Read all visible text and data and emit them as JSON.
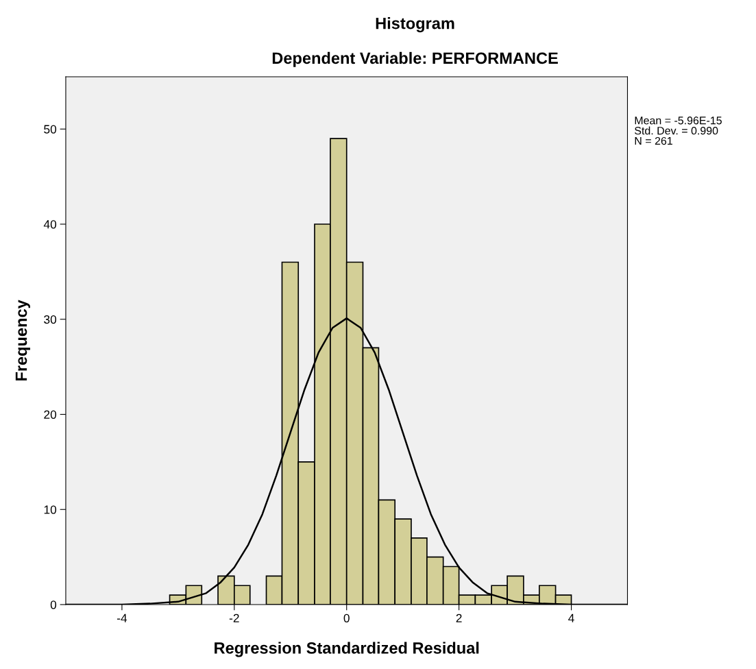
{
  "chart_data": {
    "type": "histogram",
    "title": "Histogram",
    "subtitle": "Dependent Variable: PERFORMANCE",
    "xlabel": "Regression Standardized Residual",
    "ylabel": "Frequency",
    "series": [
      {
        "color": "#d3cf97",
        "bins": [
          -3.15,
          -2.86,
          -2.58,
          -2.29,
          -2.0,
          -1.72,
          -1.43,
          -1.15,
          -0.86,
          -0.57,
          -0.29,
          0.0,
          0.29,
          0.57,
          0.86,
          1.15,
          1.43,
          1.72,
          2.0,
          2.29,
          2.58,
          2.86,
          3.15,
          3.43,
          3.72,
          4.0
        ],
        "values": [
          1,
          2,
          0,
          3,
          2,
          0,
          3,
          36,
          15,
          40,
          49,
          36,
          27,
          11,
          9,
          7,
          5,
          4,
          1,
          1,
          2,
          3,
          1,
          2,
          1
        ]
      },
      {
        "type": "line",
        "color": "#000000",
        "x": [
          -5,
          -4,
          -3.5,
          -3,
          -2.5,
          -2.25,
          -2,
          -1.75,
          -1.5,
          -1.25,
          -1,
          -0.75,
          -0.5,
          -0.25,
          0,
          0.25,
          0.5,
          0.75,
          1,
          1.25,
          1.5,
          1.75,
          2,
          2.25,
          2.5,
          3,
          3.5,
          4,
          5
        ],
        "values": [
          0,
          0,
          0.1,
          0.3,
          1.2,
          2.3,
          3.9,
          6.3,
          9.5,
          13.6,
          18.1,
          22.6,
          26.5,
          29.1,
          30.1,
          29.1,
          26.5,
          22.6,
          18.1,
          13.6,
          9.5,
          6.3,
          3.9,
          2.3,
          1.2,
          0.3,
          0.1,
          0,
          0
        ]
      }
    ],
    "xlim": [
      -5,
      5
    ],
    "xticks": [
      -4,
      -2,
      0,
      2,
      4
    ],
    "ylim": [
      0,
      55.5
    ],
    "yticks": [
      0,
      10,
      20,
      30,
      40,
      50
    ],
    "grid": false,
    "legend": false,
    "marker": "none",
    "line_style": "solid",
    "annotations": [
      "Mean = -5.96E-15",
      "Std. Dev. = 0.990",
      "N = 261"
    ]
  }
}
